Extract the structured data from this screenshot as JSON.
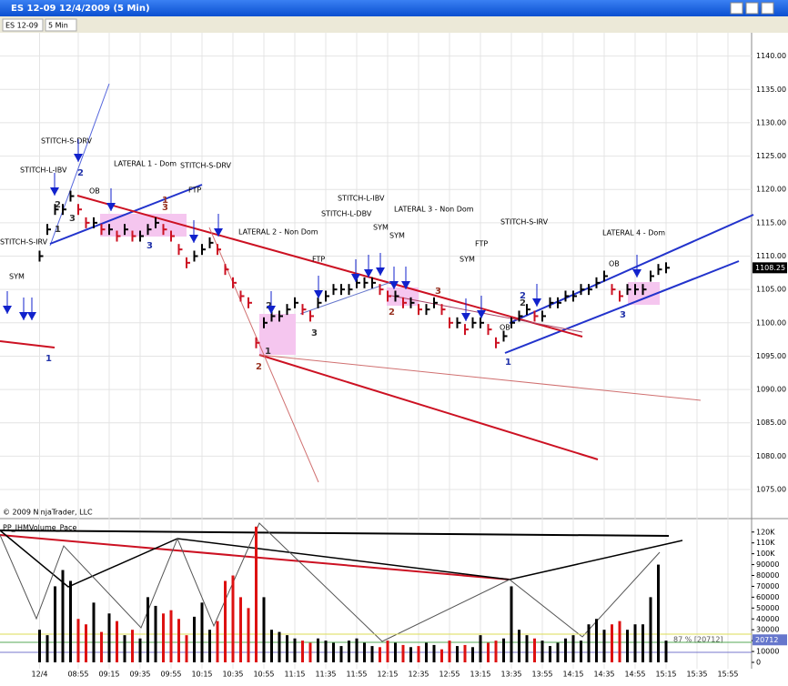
{
  "window": {
    "title": "ES 12-09  12/4/2009 (5 Min)"
  },
  "toolbar": {
    "instrument": "ES 12-09",
    "interval": "5 Min"
  },
  "price_panel": {
    "type": "bar",
    "copyright": "© 2009 NinjaTrader, LLC",
    "last": 1108.25,
    "ylim": [
      1072,
      1143.5
    ],
    "yticks": [
      {
        "value": 1075,
        "label": "1075.00"
      },
      {
        "value": 1080,
        "label": "1080.00"
      },
      {
        "value": 1085,
        "label": "1085.00"
      },
      {
        "value": 1090,
        "label": "1090.00"
      },
      {
        "value": 1095,
        "label": "1095.00"
      },
      {
        "value": 1100,
        "label": "1100.00"
      },
      {
        "value": 1105,
        "label": "1105.00"
      },
      {
        "value": 1110,
        "label": "1110.00"
      },
      {
        "value": 1115,
        "label": "1115.00"
      },
      {
        "value": 1120,
        "label": "1120.00"
      },
      {
        "value": 1125,
        "label": "1125.00"
      },
      {
        "value": 1130,
        "label": "1130.00"
      },
      {
        "value": 1135,
        "label": "1135.00"
      },
      {
        "value": 1140,
        "label": "1140.00"
      }
    ],
    "categories": [
      "12/4",
      null,
      null,
      null,
      null,
      "08:55",
      null,
      null,
      null,
      "09:15",
      null,
      null,
      null,
      "09:35",
      null,
      null,
      null,
      "09:55",
      null,
      null,
      null,
      "10:15",
      null,
      null,
      null,
      "10:35",
      null,
      null,
      null,
      "10:55",
      null,
      null,
      null,
      "11:15",
      null,
      null,
      null,
      "11:35",
      null,
      null,
      null,
      "11:55",
      null,
      null,
      null,
      "12:15",
      null,
      null,
      null,
      "12:35",
      null,
      null,
      null,
      "12:55",
      null,
      null,
      null,
      "13:15",
      null,
      null,
      null,
      "13:35",
      null,
      null,
      null,
      "13:55",
      null,
      null,
      null,
      "14:15",
      null,
      null,
      null,
      "14:35",
      null,
      null,
      null,
      "14:55",
      null,
      null,
      null,
      "15:15",
      null,
      null,
      null,
      "15:35",
      null,
      null,
      null,
      "15:55"
    ],
    "closes": [
      1110,
      1114,
      1117,
      1117,
      1119,
      1117,
      1115,
      1115,
      1114,
      1114,
      1113,
      1114,
      1113,
      1113,
      1114,
      1115,
      1114,
      1113,
      1111,
      1109,
      1110,
      1111,
      1112,
      1111,
      1108,
      1106,
      1104,
      1103,
      1097,
      1100,
      1101,
      1101,
      1102,
      1103,
      1102,
      1101,
      1103,
      1104,
      1105,
      1105,
      1105,
      1106,
      1106,
      1106,
      1105,
      1104,
      1104,
      1103,
      1103,
      1102,
      1102,
      1103,
      1102,
      1100,
      1100,
      1099,
      1100,
      1100,
      1099,
      1097,
      1098,
      1100,
      1101,
      1102,
      1101,
      1101,
      1103,
      1103,
      1104,
      1104,
      1105,
      1105,
      1106,
      1107,
      1105,
      1104,
      1105,
      1105,
      1105,
      1107,
      1108,
      1108.25,
      null,
      null,
      null,
      null,
      null,
      null,
      null,
      null
    ],
    "annotations": [
      "STITCH-S-IRV",
      "SYM",
      "STITCH-L-IBV",
      "STITCH-S-DRV",
      "OB",
      "LATERAL 1 - Dom",
      "STITCH-S-DRV",
      "FTP",
      "LATERAL 2 - Non Dom",
      "FTP",
      "STITCH-L-DBV",
      "STITCH-L-IBV",
      "SYM",
      "LATERAL 3 - Non Dom",
      "SYM",
      "SYM",
      "FTP",
      "STITCH-S-IRV",
      "OB",
      "OB",
      "LATERAL 4 - Dom"
    ],
    "wave_labels": [
      "1",
      "2",
      "2",
      "3",
      "1",
      "1",
      "3",
      "3",
      "2",
      "2",
      "1",
      "3",
      "2",
      "3",
      "1",
      "2",
      "2",
      "3"
    ]
  },
  "volume_panel": {
    "type": "bar",
    "title": "PP_JHMVolume_Pace",
    "pace_label": "87 % [20712]",
    "pace": 20712,
    "ylim": [
      0,
      124000
    ],
    "yticks": [
      0,
      {
        "value": 10000,
        "label": "10000"
      },
      {
        "value": 20000,
        "label": "20000"
      },
      {
        "value": 30000,
        "label": "30000"
      },
      {
        "value": 40000,
        "label": "40000"
      },
      {
        "value": 50000,
        "label": "50000"
      },
      {
        "value": 60000,
        "label": "60000"
      },
      {
        "value": 70000,
        "label": "70000"
      },
      {
        "value": 80000,
        "label": "80000"
      },
      {
        "value": 90000,
        "label": "90000"
      },
      {
        "value": 100000,
        "label": "100K"
      },
      {
        "value": 110000,
        "label": "110K"
      },
      {
        "value": 120000,
        "label": "120K"
      }
    ],
    "values": [
      30000,
      25000,
      70000,
      85000,
      75000,
      40000,
      35000,
      55000,
      28000,
      45000,
      38000,
      25000,
      30000,
      22000,
      60000,
      52000,
      45000,
      48000,
      40000,
      25000,
      42000,
      55000,
      30000,
      38000,
      75000,
      80000,
      60000,
      50000,
      125000,
      60000,
      30000,
      28000,
      25000,
      22000,
      20000,
      18000,
      22000,
      20000,
      18000,
      15000,
      20000,
      22000,
      18000,
      15000,
      14000,
      20000,
      18000,
      16000,
      14000,
      15000,
      18000,
      16000,
      12000,
      20000,
      15000,
      16000,
      14000,
      25000,
      18000,
      20000,
      22000,
      70000,
      30000,
      25000,
      22000,
      20000,
      15000,
      18000,
      22000,
      25000,
      20000,
      35000,
      40000,
      30000,
      35000,
      38000,
      30000,
      35000,
      35000,
      60000,
      90000,
      20000,
      null,
      null,
      null,
      null,
      null,
      null,
      null,
      null
    ]
  }
}
